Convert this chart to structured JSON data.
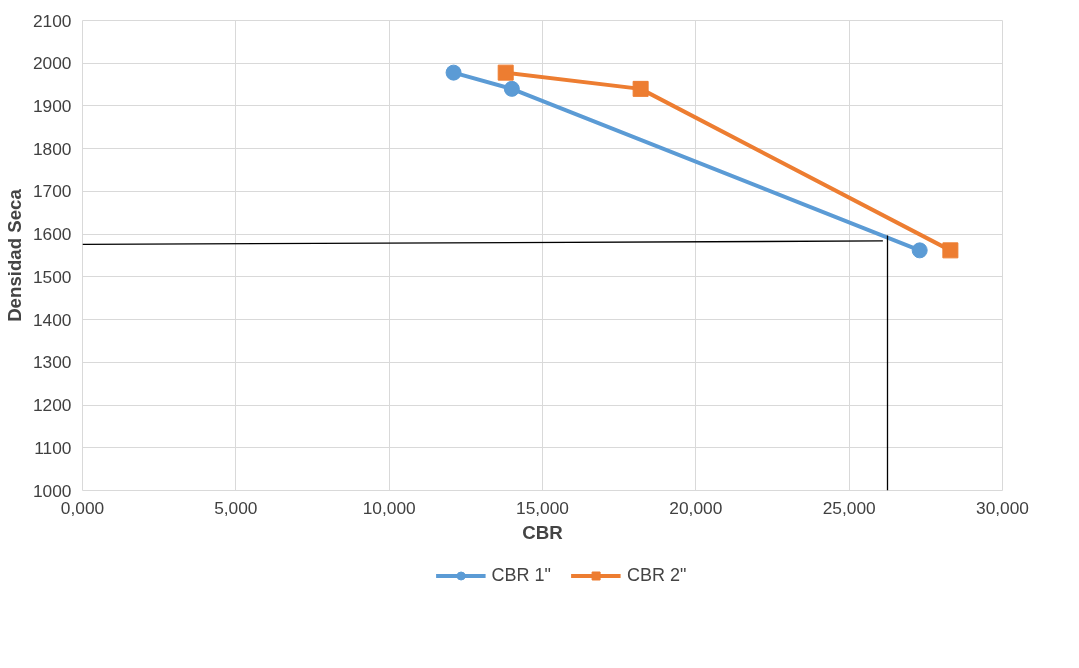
{
  "chart_data": {
    "type": "line",
    "xlabel": "CBR",
    "ylabel": "Densidad Seca",
    "xlim": [
      0,
      30000
    ],
    "xticks": [
      {
        "value": 0,
        "label": "0,000"
      },
      {
        "value": 5000,
        "label": "5,000"
      },
      {
        "value": 10000,
        "label": "10,000"
      },
      {
        "value": 15000,
        "label": "15,000"
      },
      {
        "value": 20000,
        "label": "20,000"
      },
      {
        "value": 25000,
        "label": "25,000"
      },
      {
        "value": 30000,
        "label": "30,000"
      }
    ],
    "ylim": [
      1000,
      2100
    ],
    "yticks": [
      1000,
      1100,
      1200,
      1300,
      1400,
      1500,
      1600,
      1700,
      1800,
      1900,
      2000,
      2100
    ],
    "grid": true,
    "legend": "bottom",
    "series": [
      {
        "name": "CBR 1\"",
        "color": "#5b9bd5",
        "marker": "circle",
        "x": [
          12100,
          14000,
          27300
        ],
        "values": [
          1978,
          1940,
          1562
        ]
      },
      {
        "name": "CBR 2\"",
        "color": "#ed7d31",
        "marker": "square",
        "x": [
          13800,
          18200,
          28300
        ],
        "values": [
          1978,
          1940,
          1562
        ]
      },
      {
        "color": "#000000",
        "marker": "none",
        "x": [
          0,
          26100
        ],
        "values": [
          1576,
          1584
        ]
      },
      {
        "color": "#000000",
        "marker": "none",
        "x": [
          26250,
          26250
        ],
        "values": [
          1000,
          1597
        ]
      }
    ]
  }
}
